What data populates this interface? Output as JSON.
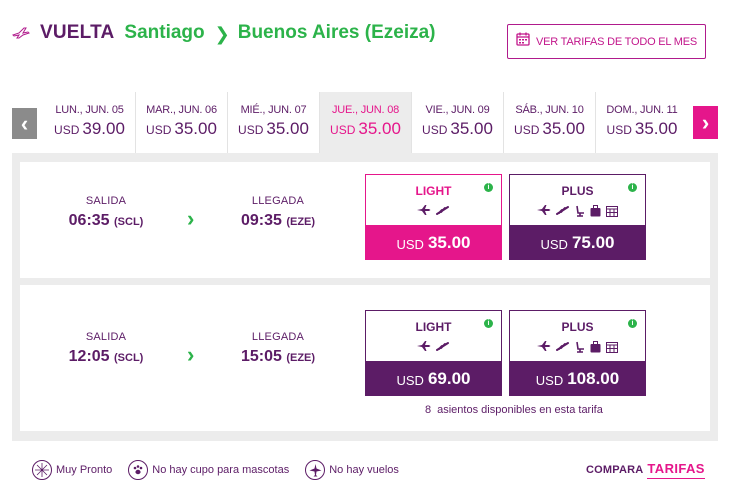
{
  "header": {
    "direction": "VUELTA",
    "origin": "Santiago",
    "destination": "Buenos Aires (Ezeiza)",
    "month_button": "VER TARIFAS DE TODO EL MES"
  },
  "date_strip": {
    "prev_arrow": "‹",
    "next_arrow": "›",
    "dates": [
      {
        "label": "LUN., JUN. 05",
        "currency": "USD",
        "price": "39.00"
      },
      {
        "label": "MAR., JUN. 06",
        "currency": "USD",
        "price": "35.00"
      },
      {
        "label": "MIÉ., JUN. 07",
        "currency": "USD",
        "price": "35.00"
      },
      {
        "label": "JUE., JUN. 08",
        "currency": "USD",
        "price": "35.00"
      },
      {
        "label": "VIE., JUN. 09",
        "currency": "USD",
        "price": "35.00"
      },
      {
        "label": "SÁB., JUN. 10",
        "currency": "USD",
        "price": "35.00"
      },
      {
        "label": "DOM., JUN. 11",
        "currency": "USD",
        "price": "35.00"
      }
    ],
    "selected_index": 3
  },
  "flights": [
    {
      "departure_label": "SALIDA",
      "departure_time": "06:35",
      "departure_code": "(SCL)",
      "arrival_label": "LLEGADA",
      "arrival_time": "09:35",
      "arrival_code": "(EZE)",
      "light": {
        "name": "LIGHT",
        "currency": "USD",
        "price": "35.00"
      },
      "plus": {
        "name": "PLUS",
        "currency": "USD",
        "price": "75.00"
      }
    },
    {
      "departure_label": "SALIDA",
      "departure_time": "12:05",
      "departure_code": "(SCL)",
      "arrival_label": "LLEGADA",
      "arrival_time": "15:05",
      "arrival_code": "(EZE)",
      "light": {
        "name": "LIGHT",
        "currency": "USD",
        "price": "69.00"
      },
      "plus": {
        "name": "PLUS",
        "currency": "USD",
        "price": "108.00"
      },
      "seats_count": "8",
      "seats_text": "asientos disponibles en esta tarifa"
    }
  ],
  "legend": {
    "soon": "Muy Pronto",
    "pets": "No hay cupo para mascotas",
    "no_flights": "No hay vuelos"
  },
  "compare": {
    "prefix": "COMPARA",
    "link": "TARIFAS"
  },
  "colors": {
    "brand_purple": "#5c1c66",
    "brand_pink": "#e5168b",
    "accent_green": "#2cb34a"
  }
}
